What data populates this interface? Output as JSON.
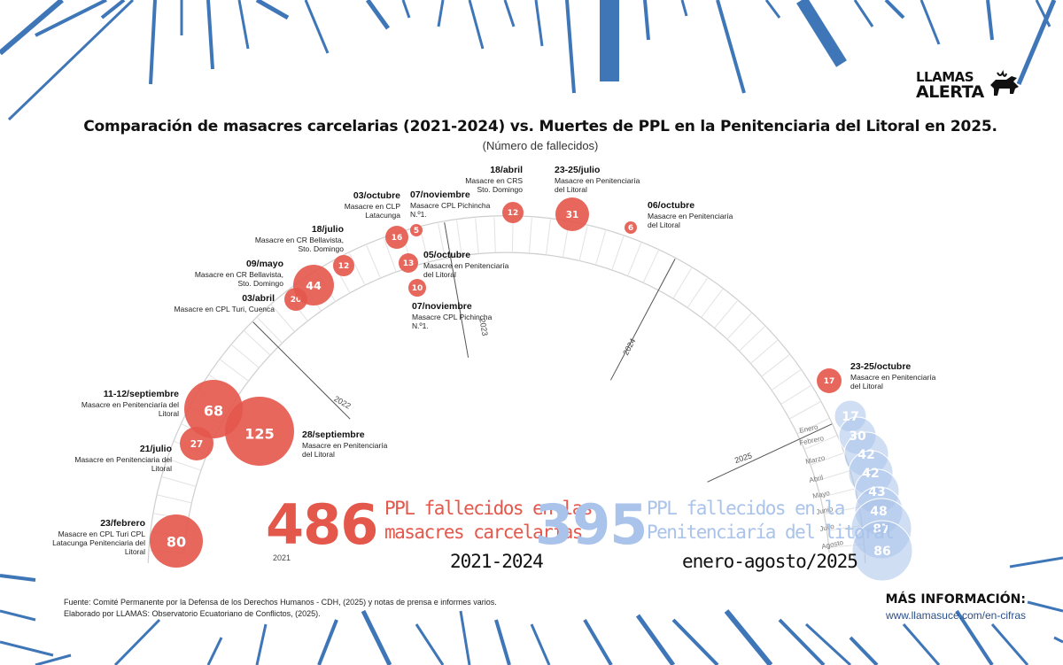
{
  "header": {
    "title": "Comparación de masacres carcelarias (2021-2024) vs. Muertes de PPL en la Penitenciaria del Litoral en 2025.",
    "subtitle": "(Número de fallecidos)"
  },
  "logo": {
    "line1": "LLAMAS",
    "line2": "ALERTA"
  },
  "colors": {
    "red": "#e4574b",
    "blue": "#a9c3ea",
    "dark_blue": "#2f6db5",
    "ray_blue": "#3e76b8"
  },
  "chart_data": {
    "type": "bubble-timeline-arc",
    "title": "Comparación de masacres carcelarias (2021-2024) vs. Muertes de PPL en la Penitenciaria del Litoral en 2025.",
    "subtitle": "(Número de fallecidos)",
    "year_labels": [
      "2021",
      "2022",
      "2023",
      "2024",
      "2025"
    ],
    "series": [
      {
        "name": "Masacres carcelarias 2021-2024",
        "color": "#e4574b",
        "points": [
          {
            "date": "23/febrero",
            "year": 2021,
            "value": 80,
            "label": "Masacre en CPL Turi CPL Latacunga Penitenciaria del Litoral"
          },
          {
            "date": "21/julio",
            "year": 2021,
            "value": 27,
            "label": "Masacre en Penitenciaria del Litoral"
          },
          {
            "date": "28/septiembre",
            "year": 2021,
            "value": 125,
            "label": "Masacre en Penitenciaría del Litoral"
          },
          {
            "date": "11-12/septiembre",
            "year": 2021,
            "value": 68,
            "label": "Masacre en Penitenciaría del Litoral"
          },
          {
            "date": "03/abril",
            "year": 2022,
            "value": 20,
            "label": "Masacre en CPL Turi, Cuenca"
          },
          {
            "date": "09/mayo",
            "year": 2022,
            "value": 44,
            "label": "Masacre en CR Bellavista, Sto. Domingo"
          },
          {
            "date": "18/julio",
            "year": 2022,
            "value": 12,
            "label": "Masacre en CR Bellavista, Sto. Domingo"
          },
          {
            "date": "03/octubre",
            "year": 2022,
            "value": 16,
            "label": "Masacre en CLP Latacunga"
          },
          {
            "date": "05/octubre",
            "year": 2022,
            "value": 13,
            "label": "Masacre en Penitenciaría del Litoral"
          },
          {
            "date": "07/noviembre",
            "year": 2022,
            "value": 5,
            "label": "Masacre CPL Pichincha N.º1."
          },
          {
            "date": "07/noviembre",
            "year": 2022,
            "value": 10,
            "label": "Masacre CPL Pichincha N.º1."
          },
          {
            "date": "18/abril",
            "year": 2023,
            "value": 12,
            "label": "Masacre en CRS Sto. Domingo"
          },
          {
            "date": "23-25/julio",
            "year": 2023,
            "value": 31,
            "label": "Masacre en Penitenciaría del Litoral"
          },
          {
            "date": "06/octubre",
            "year": 2023,
            "value": 6,
            "label": "Masacre en Penitenciaría del Litoral"
          },
          {
            "date": "23-25/octubre",
            "year": 2024,
            "value": 17,
            "label": "Masacre en Penitenciaría del Litoral"
          }
        ]
      },
      {
        "name": "Muertes PPL Penitenciaría del Litoral 2025",
        "color": "#a9c3ea",
        "points": [
          {
            "month": "Enero",
            "value": 17
          },
          {
            "month": "Febrero",
            "value": 30
          },
          {
            "month": "Marzo",
            "value": 42
          },
          {
            "month": "Abril",
            "value": 42
          },
          {
            "month": "Mayo",
            "value": 43
          },
          {
            "month": "Junio",
            "value": 48
          },
          {
            "month": "Julio",
            "value": 87
          },
          {
            "month": "Agosto",
            "value": 86
          }
        ]
      }
    ]
  },
  "totals": {
    "left": {
      "number": "486",
      "line1": "PPL fallecidos en las",
      "line2": "masacres carcelarias",
      "period": "2021-2024"
    },
    "right": {
      "number": "395",
      "line1": "PPL fallecidos en la",
      "line2": "Penitenciaría del litoral",
      "period": "enero-agosto/2025"
    }
  },
  "footer": {
    "source": "Fuente: Comité Permanente por la Defensa de los Derechos Humanos - CDH, (2025) y notas de prensa e informes varios.",
    "author": "Elaborado por LLAMAS: Observatorio Ecuatoriano de Conflictos, (2025).",
    "more_title": "MÁS INFORMACIÓN:",
    "more_url": "www.llamasuce.com/en-cifras"
  }
}
